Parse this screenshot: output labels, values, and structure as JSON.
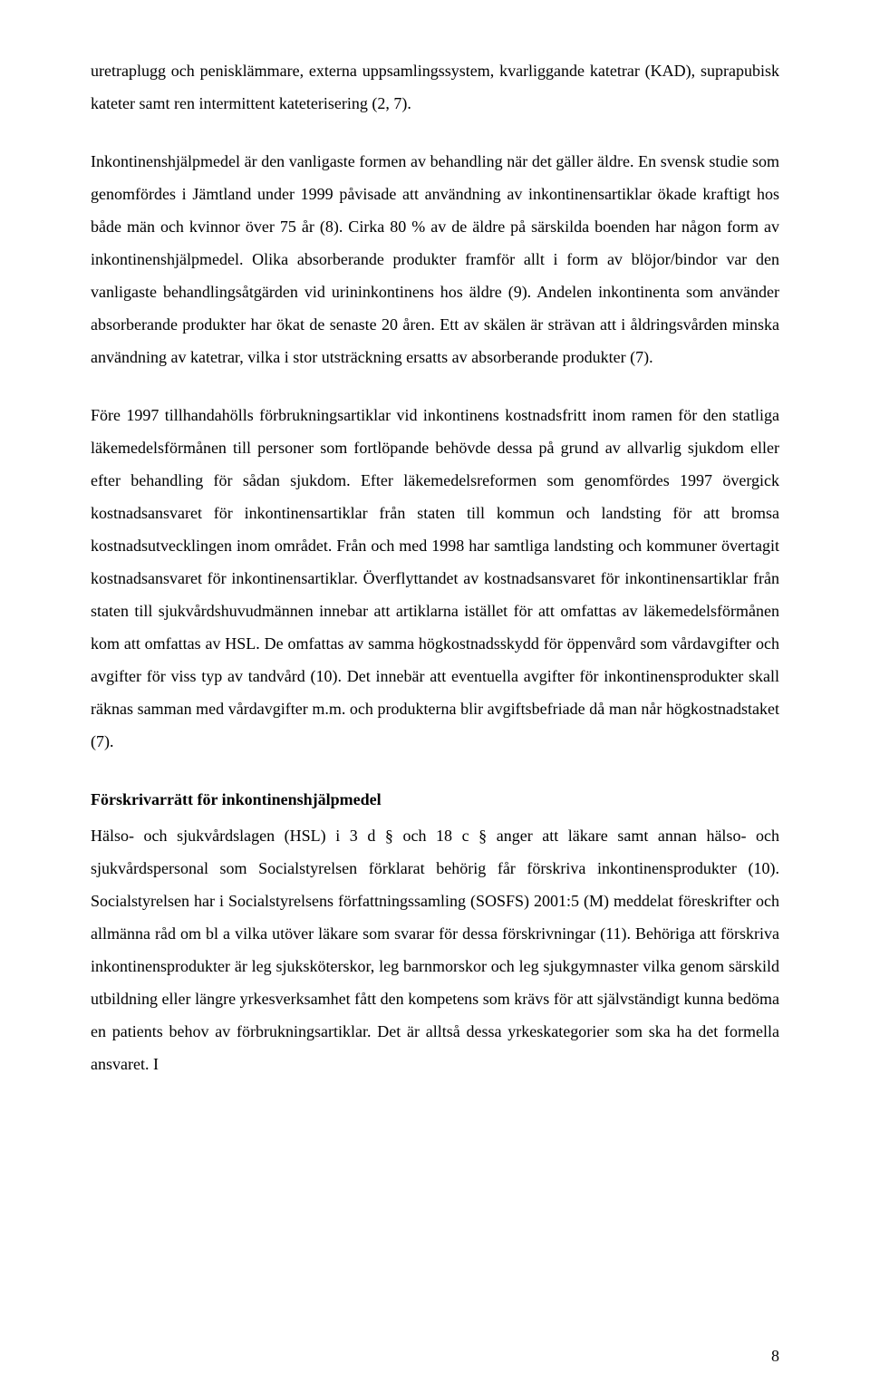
{
  "paragraphs": {
    "p1": "uretraplugg och penisklämmare, externa uppsamlingssystem, kvarliggande katetrar (KAD), suprapubisk kateter samt ren intermittent kateterisering (2, 7).",
    "p2": "Inkontinenshjälpmedel är den vanligaste formen av behandling när det gäller äldre. En svensk studie som genomfördes i Jämtland under 1999 påvisade att användning av inkontinensartiklar ökade kraftigt hos både män och kvinnor över 75 år (8). Cirka 80 % av de äldre på särskilda boenden har någon form av inkontinenshjälpmedel. Olika absorberande produkter framför allt i form av blöjor/bindor var den vanligaste behandlingsåtgärden vid urininkontinens hos äldre (9). Andelen inkontinenta som använder absorberande produkter har ökat de senaste 20 åren. Ett av skälen är strävan att i åldringsvården minska användning av katetrar, vilka i stor utsträckning ersatts av absorberande produkter (7).",
    "p3": "Före 1997 tillhandahölls förbrukningsartiklar vid inkontinens kostnadsfritt inom ramen för den statliga läkemedelsförmånen till personer som fortlöpande behövde dessa på grund av allvarlig sjukdom eller efter behandling för sådan sjukdom. Efter läkemedelsreformen som genomfördes 1997 övergick kostnadsansvaret för inkontinensartiklar från staten till kommun och landsting för att bromsa kostnadsutvecklingen inom området. Från och med 1998 har samtliga landsting och kommuner övertagit kostnadsansvaret för inkontinensartiklar. Överflyttandet av kostnadsansvaret för inkontinensartiklar från staten till sjukvårdshuvudmännen innebar att artiklarna istället för att omfattas av läkemedelsförmånen kom att omfattas av HSL. De omfattas av samma högkostnadsskydd för öppenvård som vårdavgifter och avgifter för viss typ av tandvård (10). Det innebär att eventuella avgifter för inkontinensprodukter skall räknas samman med vårdavgifter m.m. och produkterna blir avgiftsbefriade då man når högkostnadstaket (7).",
    "heading": "Förskrivarrätt för inkontinenshjälpmedel",
    "p4": "Hälso- och sjukvårdslagen (HSL) i 3 d § och 18 c § anger att läkare samt annan hälso- och sjukvårdspersonal som Socialstyrelsen förklarat behörig får förskriva inkontinensprodukter (10). Socialstyrelsen har i Socialstyrelsens författningssamling (SOSFS) 2001:5 (M) meddelat föreskrifter och allmänna råd om bl a vilka utöver läkare som svarar för dessa förskrivningar (11). Behöriga att förskriva inkontinensprodukter är leg sjuksköterskor, leg barnmorskor och leg sjukgymnaster vilka genom särskild utbildning eller längre yrkesverksamhet fått den kompetens som krävs för att självständigt kunna bedöma en patients behov av förbrukningsartiklar. Det är alltså dessa yrkeskategorier som ska ha det formella ansvaret. I"
  },
  "page_number": "8"
}
